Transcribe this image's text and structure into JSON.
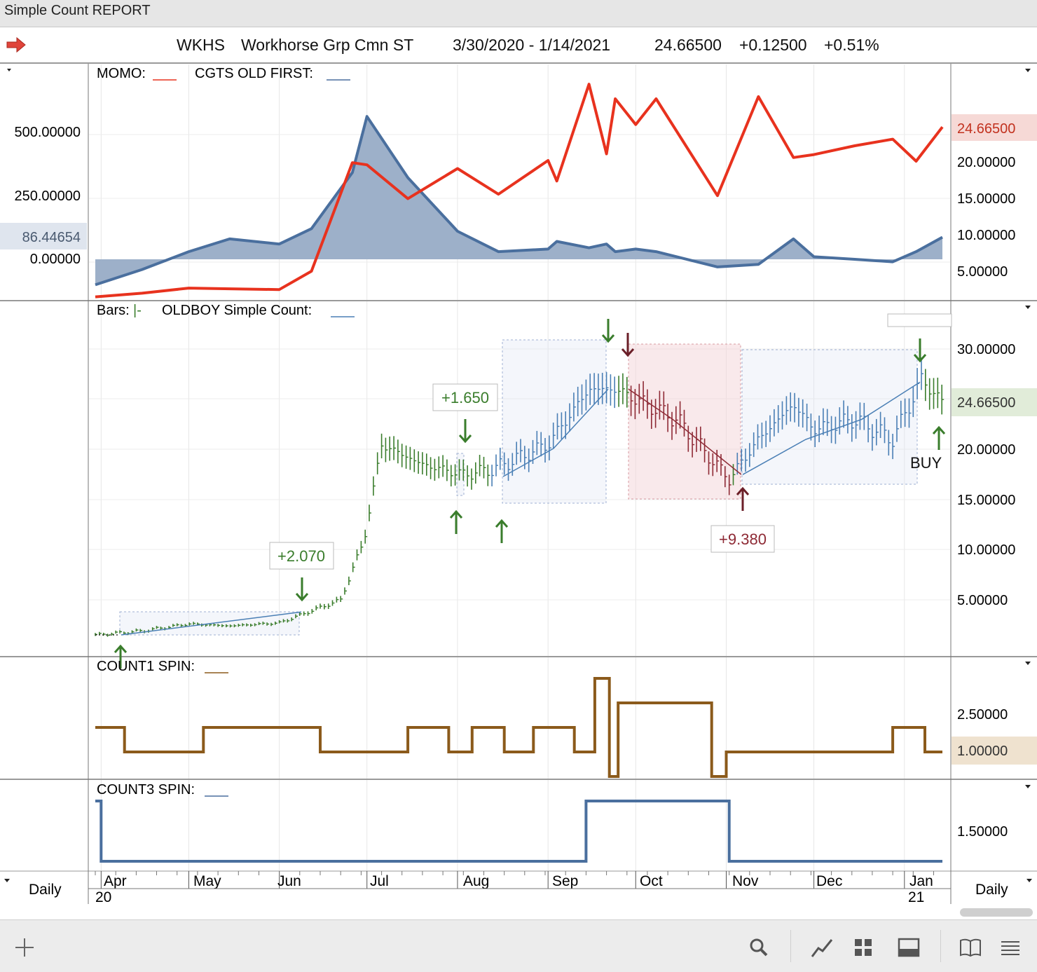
{
  "window": {
    "title": "Simple Count REPORT"
  },
  "header": {
    "symbol": "WKHS",
    "name": "Workhorse Grp Cmn ST",
    "date_range": "3/30/2020 - 1/14/2021",
    "last": "24.66500",
    "change": "+0.12500",
    "change_pct": "+0.51%"
  },
  "panes": {
    "momo": {
      "legend_a": "MOMO:",
      "legend_b": "CGTS OLD FIRST:",
      "left_ticks": [
        "500.00000",
        "250.00000",
        "0.00000"
      ],
      "left_badge": "86.44654",
      "right_ticks": [
        "20.00000",
        "15.00000",
        "10.00000",
        "5.00000"
      ],
      "right_badge": "24.66500"
    },
    "price": {
      "legend_a": "Bars:",
      "legend_bar_glyph": "|-",
      "legend_b": "OLDBOY Simple Count:",
      "right_ticks": [
        "30.00000",
        "20.00000",
        "15.00000",
        "10.00000",
        "5.00000"
      ],
      "right_badge": "24.66500",
      "annotations": [
        "+2.070",
        "+1.650",
        "+9.380"
      ],
      "buy_label": "BUY"
    },
    "count1": {
      "legend": "COUNT1 SPIN:",
      "right_ticks": [
        "2.50000"
      ],
      "right_badge": "1.00000"
    },
    "count3": {
      "legend": "COUNT3 SPIN:",
      "right_ticks": [
        "1.50000"
      ]
    }
  },
  "xaxis": {
    "months": [
      "Apr",
      "May",
      "Jun",
      "Jul",
      "Aug",
      "Sep",
      "Oct",
      "Nov",
      "Dec",
      "Jan"
    ],
    "years": [
      "20",
      "21"
    ],
    "left_label": "Daily",
    "right_label": "Daily"
  },
  "colors": {
    "momo": "#e8321e",
    "cgts": "#4a6f9e",
    "cgts_fill": "#9db0c9",
    "bars_up": "#3a7d2c",
    "bars_blue": "#4a7fb5",
    "bars_red": "#8e2a35",
    "count1": "#8b5a1b",
    "count3": "#4a6f9e"
  },
  "chart_data": [
    {
      "type": "line",
      "title": "MOMO / CGTS OLD FIRST",
      "x": [
        "2020-03-30",
        "2020-04-15",
        "2020-05-01",
        "2020-05-15",
        "2020-06-01",
        "2020-06-12",
        "2020-06-26",
        "2020-07-01",
        "2020-07-15",
        "2020-08-01",
        "2020-08-15",
        "2020-09-01",
        "2020-09-04",
        "2020-09-15",
        "2020-09-21",
        "2020-09-24",
        "2020-10-01",
        "2020-10-08",
        "2020-10-29",
        "2020-11-12",
        "2020-11-24",
        "2020-12-01",
        "2020-12-15",
        "2020-12-28",
        "2021-01-05",
        "2021-01-14"
      ],
      "series": [
        {
          "name": "MOMO",
          "axis": "right",
          "values": [
            1.5,
            2,
            2.7,
            2.6,
            2.5,
            5,
            19.8,
            19.5,
            14.9,
            19,
            15.5,
            20.1,
            17.3,
            30.5,
            21,
            28.5,
            25,
            28.5,
            15.3,
            28.8,
            20.5,
            20.9,
            22.1,
            23,
            20,
            24.665
          ]
        },
        {
          "name": "CGTS OLD FIRST",
          "axis": "left",
          "values": [
            -100,
            -40,
            30,
            80,
            60,
            120,
            340,
            560,
            320,
            110,
            30,
            40,
            70,
            45,
            60,
            30,
            40,
            30,
            -30,
            -20,
            80,
            10,
            0,
            -10,
            30,
            86.44654
          ]
        }
      ],
      "ylim_left": [
        -120,
        620
      ],
      "ylim_right": [
        0,
        31
      ]
    },
    {
      "type": "line",
      "title": "Bars / OLDBOY Simple Count",
      "x": [
        "2020-03-30",
        "2020-04-15",
        "2020-05-01",
        "2020-05-15",
        "2020-06-01",
        "2020-06-11",
        "2020-06-22",
        "2020-06-30",
        "2020-07-06",
        "2020-07-20",
        "2020-08-03",
        "2020-08-13",
        "2020-09-01",
        "2020-09-15",
        "2020-09-24",
        "2020-10-01",
        "2020-10-15",
        "2020-11-02",
        "2020-11-12",
        "2020-11-24",
        "2020-12-01",
        "2020-12-15",
        "2020-12-28",
        "2021-01-07",
        "2021-01-14"
      ],
      "series": [
        {
          "name": "Close",
          "values": [
            1.5,
            1.9,
            2.6,
            2.4,
            2.7,
            3.8,
            5,
            11,
            20.5,
            18.5,
            17.5,
            18,
            20.5,
            26,
            26,
            25,
            23,
            17,
            21,
            24.5,
            22,
            23,
            21,
            27,
            24.665
          ]
        }
      ],
      "ylim": [
        0,
        33
      ],
      "annotations": [
        {
          "label": "+2.070",
          "x": "2020-06-11"
        },
        {
          "label": "+1.650",
          "x": "2020-08-08"
        },
        {
          "label": "+9.380",
          "x": "2020-11-02"
        },
        {
          "label": "BUY",
          "x": "2021-01-14"
        }
      ]
    },
    {
      "type": "line",
      "title": "COUNT1 SPIN",
      "x": [
        "2020-03-30",
        "2020-04-09",
        "2020-05-06",
        "2020-06-15",
        "2020-07-15",
        "2020-07-29",
        "2020-08-06",
        "2020-08-17",
        "2020-08-27",
        "2020-09-10",
        "2020-09-17",
        "2020-09-22",
        "2020-09-25",
        "2020-10-27",
        "2020-11-01",
        "2020-12-28",
        "2021-01-08",
        "2021-01-14"
      ],
      "series": [
        {
          "name": "COUNT1 SPIN",
          "values": [
            2,
            1,
            2,
            1,
            2,
            1,
            2,
            1,
            2,
            1,
            4,
            0,
            3,
            0,
            1,
            2,
            1,
            1
          ]
        }
      ],
      "ylim": [
        0,
        4
      ]
    },
    {
      "type": "line",
      "title": "COUNT3 SPIN",
      "x": [
        "2020-03-30",
        "2020-04-01",
        "2020-09-14",
        "2020-11-02",
        "2021-01-14"
      ],
      "series": [
        {
          "name": "COUNT3 SPIN",
          "values": [
            2,
            1,
            2,
            1,
            1
          ]
        }
      ],
      "ylim": [
        1,
        2
      ]
    }
  ],
  "toolbar": {
    "icons": [
      "plus-icon",
      "search-icon",
      "line-chart-icon",
      "grid-icon",
      "panel-icon",
      "book-icon",
      "menu-icon"
    ]
  }
}
